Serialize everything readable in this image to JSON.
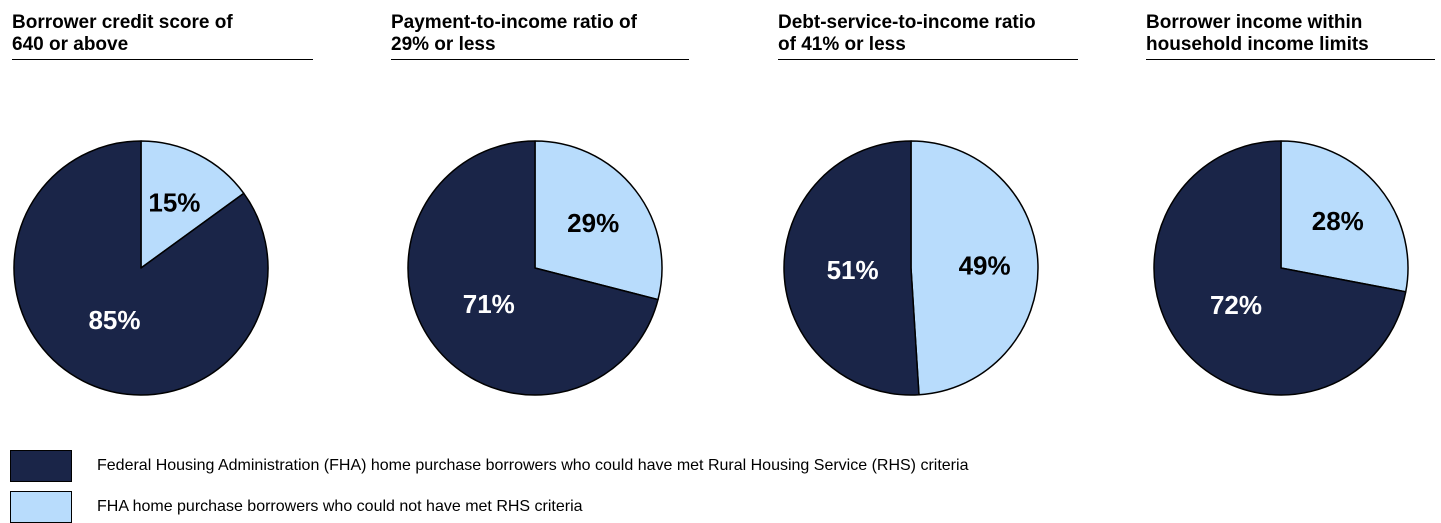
{
  "colors": {
    "met": "#1a2548",
    "not_met": "#b8dcfc",
    "label_on_dark": "#ffffff",
    "label_on_light": "#000000"
  },
  "chart_data": [
    {
      "type": "pie",
      "title": "Borrower credit score of 640 or above",
      "title_lines": [
        "Borrower credit score of",
        "640 or above"
      ],
      "slices": [
        {
          "series": "met",
          "value": 85,
          "label": "85%"
        },
        {
          "series": "not_met",
          "value": 15,
          "label": "15%"
        }
      ]
    },
    {
      "type": "pie",
      "title": "Payment-to-income ratio of 29% or less",
      "title_lines": [
        "Payment-to-income ratio of",
        "29% or less"
      ],
      "slices": [
        {
          "series": "met",
          "value": 71,
          "label": "71%"
        },
        {
          "series": "not_met",
          "value": 29,
          "label": "29%"
        }
      ]
    },
    {
      "type": "pie",
      "title": "Debt-service-to-income ratio of 41% or less",
      "title_lines": [
        "Debt-service-to-income ratio",
        "of 41% or less"
      ],
      "slices": [
        {
          "series": "met",
          "value": 51,
          "label": "51%"
        },
        {
          "series": "not_met",
          "value": 49,
          "label": "49%"
        }
      ]
    },
    {
      "type": "pie",
      "title": "Borrower income within household income limits",
      "title_lines": [
        "Borrower income within",
        "household income limits"
      ],
      "slices": [
        {
          "series": "met",
          "value": 72,
          "label": "72%"
        },
        {
          "series": "not_met",
          "value": 28,
          "label": "28%"
        }
      ]
    }
  ],
  "legend": {
    "placement": "bottom-left",
    "items": [
      {
        "series": "met",
        "label": "Federal Housing Administration (FHA) home purchase borrowers who could have met Rural Housing Service (RHS) criteria"
      },
      {
        "series": "not_met",
        "label": "FHA home purchase borrowers who could not have met RHS criteria"
      }
    ]
  }
}
